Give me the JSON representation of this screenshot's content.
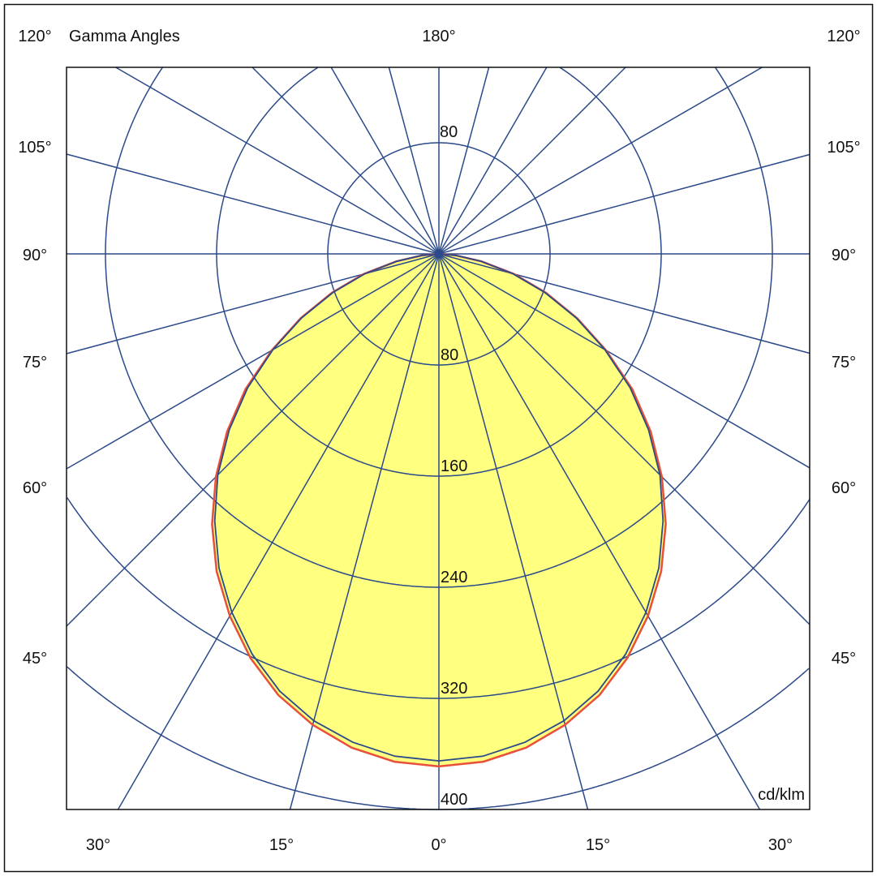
{
  "chart_data": {
    "type": "polar",
    "title": "Gamma Angles",
    "unit": "cd/klm",
    "grid": true,
    "colors": {
      "grid": "#2b4a8a",
      "fill": "#ffff80",
      "curve_c0": "#e8503a",
      "curve_c90": "#2b4a8a"
    },
    "radial_ticks": [
      80,
      160,
      240,
      320,
      400
    ],
    "radial_max": 560,
    "upper_ring_label": "80",
    "angle_step_deg": 15,
    "angle_labels": {
      "top": "180°",
      "left": [
        "120°",
        "105°",
        "90°",
        "75°",
        "60°",
        "45°"
      ],
      "right": [
        "120°",
        "105°",
        "90°",
        "75°",
        "60°",
        "45°"
      ],
      "bottom": [
        "30°",
        "15°",
        "0°",
        "15°",
        "30°"
      ]
    },
    "gamma_deg": [
      0,
      5,
      10,
      15,
      20,
      25,
      30,
      35,
      40,
      45,
      50,
      55,
      60,
      65,
      70,
      75,
      80,
      85,
      90
    ],
    "series": [
      {
        "plane": "C0-C180",
        "values": [
          369,
          367,
          361,
          351,
          338,
          321,
          301,
          279,
          254,
          227,
          199,
          170,
          139,
          110,
          82,
          56,
          31,
          12,
          0
        ]
      },
      {
        "plane": "C90-C270",
        "values": [
          365,
          363,
          357,
          348,
          335,
          318,
          298,
          276,
          251,
          225,
          197,
          168,
          138,
          109,
          81,
          55,
          31,
          12,
          0
        ]
      }
    ]
  }
}
